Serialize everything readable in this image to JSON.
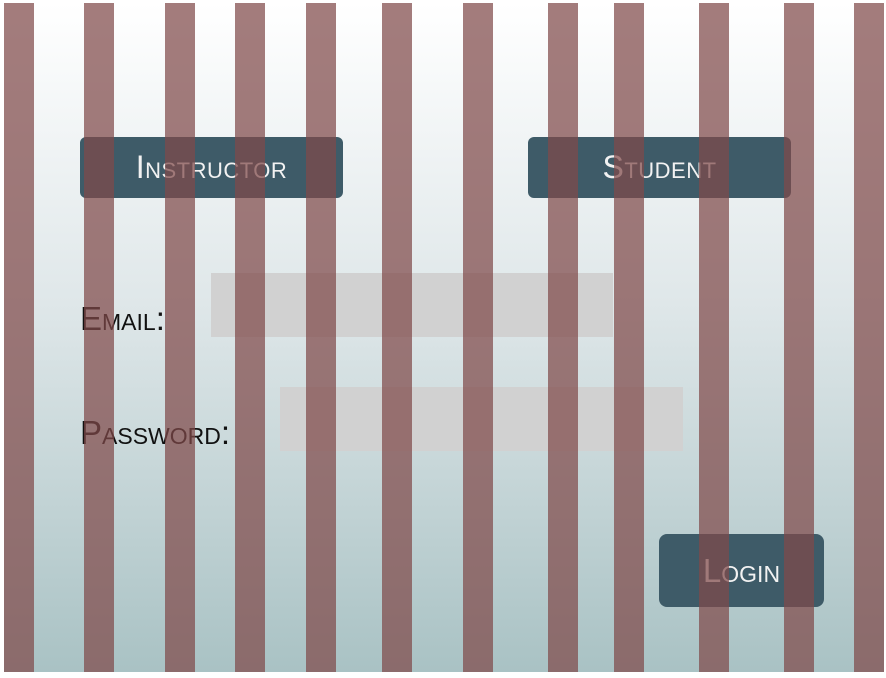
{
  "role_selector": {
    "instructor_label": "Instructor",
    "student_label": "Student"
  },
  "login_form": {
    "email_label": "Email:",
    "email_value": "",
    "password_label": "Password:",
    "password_value": "",
    "login_label": "Login"
  },
  "colors": {
    "button_background": "#3e5b68",
    "button_text": "#f2f2f2",
    "field_background": "#d1d1d1",
    "stripe_overlay": "#804a4a",
    "gradient_top": "#ffffff",
    "gradient_bottom": "#a9c2c4"
  }
}
